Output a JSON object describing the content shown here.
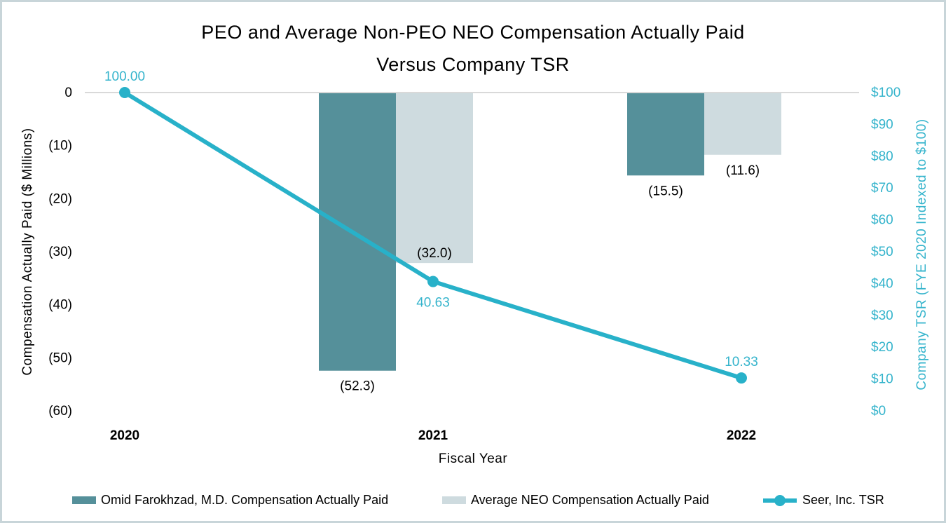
{
  "chart_data": {
    "type": "bar",
    "title_line1": "PEO and Average Non-PEO NEO Compensation Actually Paid",
    "title_line2": "Versus Company TSR",
    "xlabel": "Fiscal Year",
    "ylabel_left": "Compensation Actually Paid ($ Millions)",
    "ylabel_right": "Company TSR (FYE 2020 Indexed to $100)",
    "categories": [
      "2020",
      "2021",
      "2022"
    ],
    "bar_series": [
      {
        "name": "Omid Farokhzad, M.D. Compensation Actually Paid",
        "values": [
          null,
          -52.3,
          -15.5
        ],
        "labels": [
          null,
          "(52.3)",
          "(15.5)"
        ],
        "label_positions": [
          null,
          "below",
          "below"
        ]
      },
      {
        "name": "Average NEO Compensation Actually Paid",
        "values": [
          null,
          -32.0,
          -11.6
        ],
        "labels": [
          null,
          "(32.0)",
          "(11.6)"
        ],
        "label_positions": [
          null,
          "inside",
          "below"
        ]
      }
    ],
    "line_series": {
      "name": "Seer, Inc. TSR",
      "values": [
        100.0,
        40.63,
        10.33
      ],
      "labels": [
        "100.00",
        "40.63",
        "10.33"
      ],
      "label_positions": [
        "above",
        "below",
        "above"
      ]
    },
    "left_axis": {
      "ticks": [
        "0",
        "(10)",
        "(20)",
        "(30)",
        "(40)",
        "(50)",
        "(60)"
      ],
      "range": [
        0,
        -60
      ],
      "grid": "zero-line-only"
    },
    "right_axis": {
      "ticks": [
        "$100",
        "$90",
        "$80",
        "$70",
        "$60",
        "$50",
        "$40",
        "$30",
        "$20",
        "$10",
        "$0"
      ],
      "range": [
        100,
        0
      ]
    },
    "legend_position": "bottom"
  },
  "legend": {
    "items": [
      {
        "label": "Omid Farokhzad, M.D. Compensation Actually Paid"
      },
      {
        "label": "Average NEO Compensation Actually Paid"
      },
      {
        "label": "Seer, Inc. TSR"
      }
    ]
  },
  "colors": {
    "peo_bar": "#55909a",
    "neo_bar": "#cedbdf",
    "tsr_line": "#28b1c9",
    "tsr_text": "#35b4cc",
    "gridline": "#d9d9d9",
    "frame_border": "#c8d5d9",
    "text": "#000000"
  }
}
